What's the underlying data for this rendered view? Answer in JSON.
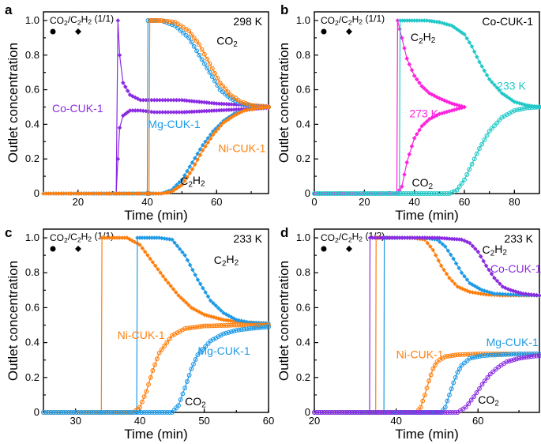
{
  "figure": {
    "y_axis_label": "Outlet concentration",
    "x_axis_label": "Time (min)"
  },
  "colors": {
    "orange": "#ff7f0e",
    "blue": "#1f9ae6",
    "purple": "#8a2be2",
    "magenta": "#ff22dd",
    "cyan": "#22c8c8"
  },
  "chart_data": [
    {
      "panel": "a",
      "type": "line",
      "title": "",
      "feed_label": "CO2/C2H2 (1/1)",
      "temperature_label": "298 K",
      "xlabel": "Time (min)",
      "ylabel": "Outlet concentration",
      "xlim": [
        10,
        75
      ],
      "ylim": [
        0,
        1.05
      ],
      "x_ticks": [
        20,
        40,
        60
      ],
      "y_ticks": [
        0,
        0.2,
        0.4,
        0.6,
        0.8,
        1.0
      ],
      "y_tick_labels": [
        "0",
        "0.2",
        "0.4",
        "0.6",
        "0.8",
        "1.0"
      ],
      "series": [
        {
          "name": "Co-CUK-1 CO2",
          "color": "purple",
          "marker": "diamond",
          "x": [
            31,
            31.5,
            32,
            33,
            35,
            38,
            42,
            46,
            50,
            55,
            60,
            65,
            70,
            75
          ],
          "y": [
            0,
            1.0,
            0.8,
            0.64,
            0.57,
            0.54,
            0.54,
            0.54,
            0.54,
            0.53,
            0.52,
            0.515,
            0.51,
            0.505
          ]
        },
        {
          "name": "Co-CUK-1 C2H2",
          "color": "purple",
          "marker": "diamond",
          "x": [
            31,
            31.5,
            32,
            33,
            35,
            38,
            42,
            46,
            50,
            55,
            60,
            65,
            70,
            75
          ],
          "y": [
            0,
            0.2,
            0.38,
            0.45,
            0.48,
            0.48,
            0.47,
            0.47,
            0.47,
            0.475,
            0.48,
            0.485,
            0.49,
            0.495
          ]
        },
        {
          "name": "Mg-CUK-1 CO2",
          "color": "blue",
          "marker": "circle",
          "x": [
            40,
            40.2,
            44,
            48,
            52,
            55,
            58,
            61,
            64,
            67,
            70,
            75
          ],
          "y": [
            0,
            1.0,
            1.0,
            0.97,
            0.9,
            0.8,
            0.7,
            0.6,
            0.55,
            0.52,
            0.505,
            0.5
          ]
        },
        {
          "name": "Ni-CUK-1 CO2",
          "color": "orange",
          "marker": "circle",
          "x": [
            40.5,
            40.7,
            44,
            48,
            52,
            55,
            58,
            61,
            64,
            67,
            70,
            75
          ],
          "y": [
            0,
            1.0,
            1.0,
            0.99,
            0.94,
            0.86,
            0.75,
            0.64,
            0.57,
            0.53,
            0.51,
            0.5
          ]
        },
        {
          "name": "Mg-CUK-1 C2H2",
          "color": "blue",
          "marker": "diamond",
          "x": [
            10,
            40,
            44,
            47,
            50,
            53,
            56,
            59,
            62,
            65,
            68,
            71,
            75
          ],
          "y": [
            0,
            0,
            0,
            0.02,
            0.08,
            0.18,
            0.28,
            0.36,
            0.42,
            0.46,
            0.48,
            0.49,
            0.5
          ]
        },
        {
          "name": "Ni-CUK-1 C2H2",
          "color": "orange",
          "marker": "diamond",
          "x": [
            10,
            44,
            47,
            50,
            53,
            56,
            59,
            62,
            65,
            68,
            71,
            75
          ],
          "y": [
            0,
            0,
            0.01,
            0.05,
            0.14,
            0.25,
            0.34,
            0.41,
            0.45,
            0.48,
            0.49,
            0.5
          ]
        }
      ],
      "annotations": [
        {
          "text": "CO2",
          "color": "black"
        },
        {
          "text": "Co-CUK-1",
          "color": "purple"
        },
        {
          "text": "Mg-CUK-1",
          "color": "blue"
        },
        {
          "text": "Ni-CUK-1",
          "color": "orange"
        },
        {
          "text": "C2H2",
          "color": "black"
        }
      ]
    },
    {
      "panel": "b",
      "type": "line",
      "title": "",
      "feed_label": "CO2/C2H2 (1/1)",
      "temperature_label": "Co-CUK-1",
      "xlabel": "Time (min)",
      "ylabel": "",
      "xlim": [
        0,
        90
      ],
      "ylim": [
        0,
        1.05
      ],
      "x_ticks": [
        0,
        20,
        40,
        60,
        80
      ],
      "y_ticks": [
        0,
        0.2,
        0.4,
        0.6,
        0.8,
        1.0
      ],
      "y_tick_labels": [
        "0",
        "0.2",
        "0.4",
        "0.6",
        "0.8",
        "1.0"
      ],
      "series": [
        {
          "name": "273 K CO2",
          "color": "magenta",
          "marker": "diamond",
          "x": [
            33,
            33.3,
            35,
            37,
            40,
            43,
            46,
            50,
            55,
            60
          ],
          "y": [
            0,
            1.0,
            0.9,
            0.78,
            0.68,
            0.62,
            0.58,
            0.55,
            0.52,
            0.5
          ]
        },
        {
          "name": "273 K C2H2",
          "color": "magenta",
          "marker": "diamond",
          "x": [
            0,
            33,
            35,
            37,
            40,
            43,
            46,
            50,
            55,
            60
          ],
          "y": [
            0,
            0,
            0.04,
            0.18,
            0.32,
            0.39,
            0.43,
            0.46,
            0.48,
            0.5
          ]
        },
        {
          "name": "233 K C2H2",
          "color": "cyan",
          "marker": "diamond",
          "x": [
            34,
            34.3,
            40,
            45,
            50,
            55,
            60,
            63,
            66,
            70,
            75,
            80,
            85,
            90
          ],
          "y": [
            0,
            1.0,
            1.0,
            1.0,
            0.99,
            0.97,
            0.92,
            0.85,
            0.76,
            0.66,
            0.58,
            0.53,
            0.51,
            0.5
          ]
        },
        {
          "name": "233 K CO2",
          "color": "cyan",
          "marker": "circle",
          "x": [
            0,
            54,
            57,
            60,
            63,
            66,
            70,
            75,
            80,
            85,
            90
          ],
          "y": [
            0,
            0,
            0.02,
            0.08,
            0.17,
            0.26,
            0.36,
            0.44,
            0.48,
            0.495,
            0.5
          ]
        }
      ],
      "annotations": [
        {
          "text": "C2H2",
          "color": "black"
        },
        {
          "text": "233 K",
          "color": "cyan"
        },
        {
          "text": "273 K",
          "color": "magenta"
        },
        {
          "text": "CO2",
          "color": "black"
        }
      ]
    },
    {
      "panel": "c",
      "type": "line",
      "title": "",
      "feed_label": "CO2/C2H2 (1/1)",
      "temperature_label": "233 K",
      "xlabel": "Time (min)",
      "ylabel": "Outlet concentration",
      "xlim": [
        25,
        60
      ],
      "ylim": [
        0,
        1.05
      ],
      "x_ticks": [
        30,
        40,
        50,
        60
      ],
      "y_ticks": [
        0,
        0.2,
        0.4,
        0.6,
        0.8,
        1.0
      ],
      "y_tick_labels": [
        "0",
        "0.2",
        "0.4",
        "0.6",
        "0.8",
        "1.0"
      ],
      "series": [
        {
          "name": "Ni-CUK-1 C2H2",
          "color": "orange",
          "marker": "diamond",
          "x": [
            34,
            34.1,
            38,
            40,
            42,
            44,
            46,
            48,
            50,
            53,
            56,
            60
          ],
          "y": [
            0,
            1.0,
            1.0,
            0.96,
            0.86,
            0.76,
            0.67,
            0.6,
            0.56,
            0.53,
            0.515,
            0.51
          ]
        },
        {
          "name": "Mg-CUK-1 C2H2",
          "color": "blue",
          "marker": "diamond",
          "x": [
            39.5,
            39.6,
            43,
            45,
            47,
            49,
            51,
            53,
            55,
            57,
            60
          ],
          "y": [
            0,
            1.0,
            1.0,
            0.99,
            0.9,
            0.76,
            0.64,
            0.57,
            0.53,
            0.515,
            0.51
          ]
        },
        {
          "name": "Ni-CUK-1 CO2",
          "color": "orange",
          "marker": "circle",
          "x": [
            25,
            39,
            40,
            41,
            42,
            43,
            45,
            47,
            50,
            55,
            60
          ],
          "y": [
            0,
            0,
            0.03,
            0.12,
            0.24,
            0.34,
            0.44,
            0.48,
            0.495,
            0.5,
            0.5
          ]
        },
        {
          "name": "Mg-CUK-1 CO2",
          "color": "blue",
          "marker": "circle",
          "x": [
            25,
            45,
            46,
            47,
            48,
            49,
            51,
            53,
            55,
            57,
            60
          ],
          "y": [
            0,
            0,
            0.04,
            0.14,
            0.25,
            0.33,
            0.41,
            0.45,
            0.47,
            0.48,
            0.49
          ]
        }
      ],
      "annotations": [
        {
          "text": "C2H2",
          "color": "black"
        },
        {
          "text": "Ni-CUK-1",
          "color": "orange"
        },
        {
          "text": "Mg-CUK-1",
          "color": "blue"
        },
        {
          "text": "CO2",
          "color": "black"
        }
      ]
    },
    {
      "panel": "d",
      "type": "line",
      "title": "",
      "feed_label": "CO2/C2H2 (1/2)",
      "temperature_label": "233 K",
      "xlabel": "Time (min)",
      "ylabel": "",
      "xlim": [
        20,
        75
      ],
      "ylim": [
        0,
        1.05
      ],
      "x_ticks": [
        20,
        40,
        60
      ],
      "y_ticks": [
        0,
        0.2,
        0.4,
        0.6,
        0.8,
        1.0
      ],
      "y_tick_labels": [
        "0",
        "0.2",
        "0.4",
        "0.6",
        "0.8",
        "1.0"
      ],
      "series": [
        {
          "name": "Ni-CUK-1 C2H2",
          "color": "orange",
          "marker": "diamond",
          "x": [
            35,
            35.1,
            44,
            47,
            49,
            51,
            53,
            55,
            58,
            62,
            66,
            70,
            75
          ],
          "y": [
            0,
            1.0,
            1.0,
            0.99,
            0.93,
            0.84,
            0.77,
            0.72,
            0.69,
            0.675,
            0.67,
            0.67,
            0.67
          ]
        },
        {
          "name": "Mg-CUK-1 C2H2",
          "color": "blue",
          "marker": "diamond",
          "x": [
            37,
            37.1,
            47,
            50,
            52,
            54,
            56,
            58,
            61,
            64,
            68,
            75
          ],
          "y": [
            0,
            1.0,
            1.0,
            0.99,
            0.95,
            0.88,
            0.8,
            0.74,
            0.7,
            0.68,
            0.675,
            0.67
          ]
        },
        {
          "name": "Co-CUK-1 C2H2",
          "color": "purple",
          "marker": "diamond",
          "x": [
            33.5,
            33.6,
            50,
            56,
            58,
            60,
            62,
            64,
            66,
            68,
            71,
            75
          ],
          "y": [
            0,
            1.0,
            1.0,
            0.99,
            0.97,
            0.92,
            0.84,
            0.77,
            0.72,
            0.7,
            0.68,
            0.67
          ]
        },
        {
          "name": "Ni-CUK-1 CO2",
          "color": "orange",
          "marker": "circle",
          "x": [
            20,
            45,
            46,
            47,
            48,
            49,
            50,
            52,
            55,
            60,
            65,
            75
          ],
          "y": [
            0,
            0,
            0.03,
            0.1,
            0.18,
            0.25,
            0.29,
            0.32,
            0.33,
            0.335,
            0.335,
            0.335
          ]
        },
        {
          "name": "Mg-CUK-1 CO2",
          "color": "blue",
          "marker": "circle",
          "x": [
            20,
            51,
            52,
            53,
            54,
            55,
            56,
            58,
            61,
            65,
            70,
            75
          ],
          "y": [
            0,
            0,
            0.03,
            0.1,
            0.17,
            0.23,
            0.27,
            0.31,
            0.325,
            0.33,
            0.335,
            0.335
          ]
        },
        {
          "name": "Co-CUK-1 CO2",
          "color": "purple",
          "marker": "circle",
          "x": [
            20,
            55,
            57,
            59,
            61,
            63,
            65,
            67,
            70,
            73,
            75
          ],
          "y": [
            0,
            0,
            0.03,
            0.09,
            0.16,
            0.22,
            0.26,
            0.29,
            0.31,
            0.32,
            0.325
          ]
        }
      ],
      "annotations": [
        {
          "text": "C2H2",
          "color": "black"
        },
        {
          "text": "Co-CUK-1",
          "color": "purple"
        },
        {
          "text": "Mg-CUK-1",
          "color": "blue"
        },
        {
          "text": "Ni-CUK-1",
          "color": "orange"
        },
        {
          "text": "CO2",
          "color": "black"
        }
      ]
    }
  ]
}
